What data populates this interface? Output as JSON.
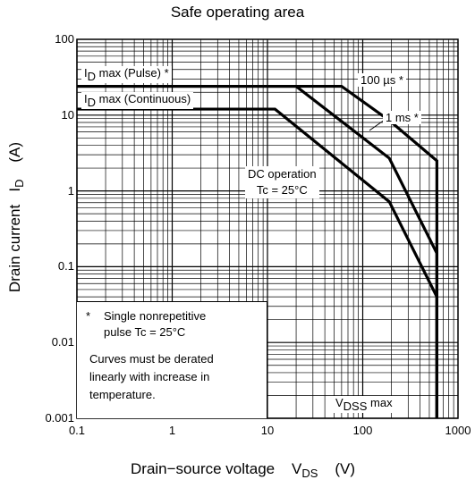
{
  "chart_data": {
    "type": "line",
    "title": "Safe operating area",
    "xlabel": "Drain−source voltage",
    "xlabel_symbol": "V",
    "xlabel_symbol_sub": "DS",
    "xlabel_unit": "(V)",
    "ylabel": "Drain current",
    "ylabel_symbol": "I",
    "ylabel_symbol_sub": "D",
    "ylabel_unit": "(A)",
    "x_scale": "log",
    "y_scale": "log",
    "xlim": [
      0.1,
      1000
    ],
    "ylim": [
      0.001,
      100
    ],
    "grid": true,
    "x_ticks": [
      "0.1",
      "1",
      "10",
      "100",
      "1000"
    ],
    "y_ticks": [
      "100",
      "10",
      "1",
      "0.1",
      "0.01",
      "0.001"
    ],
    "series": [
      {
        "name": "DC operation",
        "x": [
          0.1,
          12,
          190,
          600,
          600
        ],
        "y": [
          12,
          12,
          0.72,
          0.04,
          0.001
        ]
      },
      {
        "name": "1 ms",
        "x": [
          0.1,
          20,
          190,
          600,
          600
        ],
        "y": [
          24,
          24,
          2.7,
          0.15,
          0.001
        ]
      },
      {
        "name": "100 µs",
        "x": [
          0.1,
          60,
          190,
          600,
          600
        ],
        "y": [
          24,
          24,
          8.5,
          2.5,
          0.001
        ]
      }
    ],
    "annotations": {
      "pulse_max": "I",
      "pulse_max_sub": "D",
      "pulse_max_rest": " max (Pulse) *",
      "cont_max": "I",
      "cont_max_sub": "D",
      "cont_max_rest": " max (Continuous)",
      "us100": "100 µs *",
      "ms1": "1 ms *",
      "dc_line1": "DC operation",
      "dc_line2": "Tc = 25°C",
      "vdss": "V",
      "vdss_sub": "DSS",
      "vdss_rest": " max",
      "note1_star": "*",
      "note1_a": "Single nonrepetitive",
      "note1_b": "pulse    Tc = 25°C",
      "note2_a": "Curves must be derated",
      "note2_b": "linearly with increase in",
      "note2_c": "temperature."
    }
  }
}
